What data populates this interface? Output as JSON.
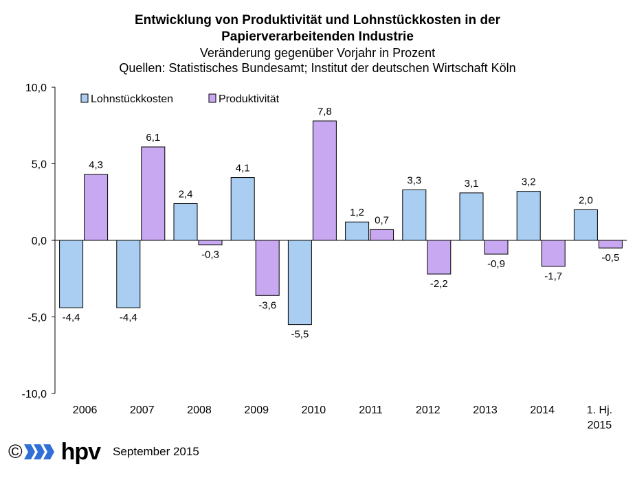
{
  "title_line1": "Entwicklung von Produktivität und Lohnstückkosten in der",
  "title_line2": "Papierverarbeitenden Industrie",
  "subtitle": "Veränderung gegenüber Vorjahr in Prozent",
  "source": "Quellen:  Statistisches  Bundesamt;  Institut der deutschen Wirtschaft Köln",
  "footer": {
    "copyright": "©",
    "brand": "hpv",
    "date": "September 2015"
  },
  "chart_data": {
    "type": "bar",
    "categories": [
      "2006",
      "2007",
      "2008",
      "2009",
      "2010",
      "2011",
      "2012",
      "2013",
      "2014",
      "1. Hj. 2015"
    ],
    "series": [
      {
        "name": "Lohnstückkosten",
        "color": "#a9cef2",
        "values": [
          -4.4,
          -4.4,
          2.4,
          4.1,
          -5.5,
          1.2,
          3.3,
          3.1,
          3.2,
          2.0
        ],
        "labels": [
          "-4,4",
          "-4,4",
          "2,4",
          "4,1",
          "-5,5",
          "1,2",
          "3,3",
          "3,1",
          "3,2",
          "2,0"
        ]
      },
      {
        "name": "Produktivität",
        "color": "#c9a8f2",
        "values": [
          4.3,
          6.1,
          -0.3,
          -3.6,
          7.8,
          0.7,
          -2.2,
          -0.9,
          -1.7,
          -0.5
        ],
        "labels": [
          "4,3",
          "6,1",
          "-0,3",
          "-3,6",
          "7,8",
          "0,7",
          "-2,2",
          "-0,9",
          "-1,7",
          "-0,5"
        ]
      }
    ],
    "ylim": [
      -10,
      10
    ],
    "yticks": [
      -10,
      -5,
      0,
      5,
      10
    ],
    "ytick_labels": [
      "-10,0",
      "-5,0",
      "0,0",
      "5,0",
      "10,0"
    ],
    "legend": "top-left",
    "grid": false
  }
}
